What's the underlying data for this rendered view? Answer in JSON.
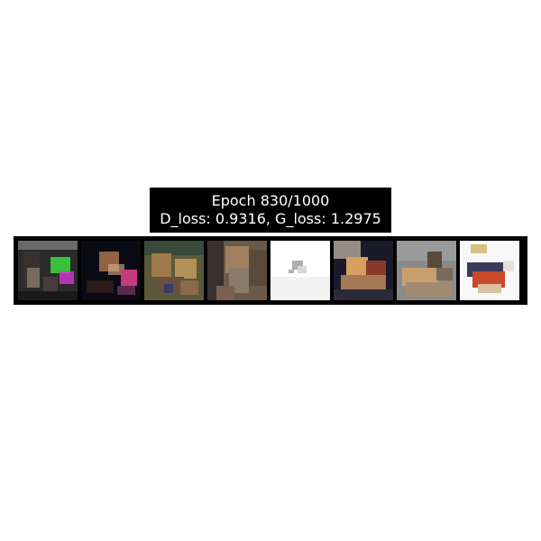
{
  "title": {
    "line1": "Epoch 830/1000",
    "line2": "D_loss: 0.9316, G_loss: 1.2975"
  },
  "colors": {
    "background": "#ffffff",
    "strip_background": "#000000",
    "title_background": "#000000",
    "title_text": "#ffffff"
  },
  "sample_images": [
    {
      "name": "generated-sample-1",
      "dominant_colors": [
        "#2a2a2a",
        "#3ddc3d",
        "#d43ad4",
        "#7a6a5a"
      ]
    },
    {
      "name": "generated-sample-2",
      "dominant_colors": [
        "#0a0a14",
        "#c63a7a",
        "#c98a5a",
        "#2a1a1a"
      ]
    },
    {
      "name": "generated-sample-3",
      "dominant_colors": [
        "#5a5a3a",
        "#a07a4a",
        "#3a4a3a",
        "#c8a060"
      ]
    },
    {
      "name": "generated-sample-4",
      "dominant_colors": [
        "#6a5a4a",
        "#a08060",
        "#8a7a6a",
        "#3a3030"
      ]
    },
    {
      "name": "generated-sample-5",
      "dominant_colors": [
        "#ffffff",
        "#f2f2f2",
        "#8a8a8a",
        "#d8d8d8"
      ]
    },
    {
      "name": "generated-sample-6",
      "dominant_colors": [
        "#1a1a2a",
        "#d8a060",
        "#8a3a2a",
        "#e8d8c0"
      ]
    },
    {
      "name": "generated-sample-7",
      "dominant_colors": [
        "#8a8a8a",
        "#c8a070",
        "#a08a70",
        "#5a4a3a"
      ]
    },
    {
      "name": "generated-sample-8",
      "dominant_colors": [
        "#f8f8f8",
        "#c84a2a",
        "#3a3a5a",
        "#d8c0a0"
      ]
    }
  ]
}
